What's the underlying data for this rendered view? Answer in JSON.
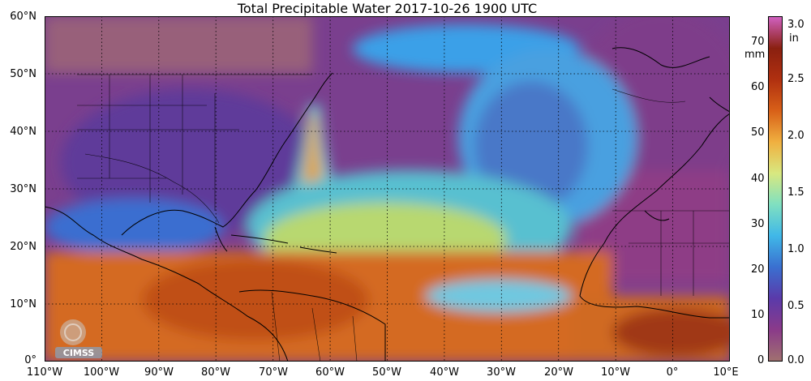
{
  "title": "Total Precipitable Water  2017-10-26 1900 UTC",
  "lat_labels": [
    "60°N",
    "50°N",
    "40°N",
    "30°N",
    "20°N",
    "10°N",
    "0°"
  ],
  "lon_labels": [
    "110°W",
    "100°W",
    "90°W",
    "80°W",
    "70°W",
    "60°W",
    "50°W",
    "40°W",
    "30°W",
    "20°W",
    "10°W",
    "0°",
    "10°E"
  ],
  "colorbar": {
    "mm_labels": [
      "70",
      "60",
      "50",
      "40",
      "30",
      "20",
      "10",
      "0"
    ],
    "mm_unit": "mm",
    "in_labels": [
      "3.0",
      "2.5",
      "2.0",
      "1.5",
      "1.0",
      "0.5",
      "0.0"
    ],
    "in_unit": "in",
    "colors": [
      "#a07070",
      "#8a3a8a",
      "#5a3aaa",
      "#3a70d0",
      "#40b8e8",
      "#80e0c0",
      "#d8e880",
      "#f0b040",
      "#d86018",
      "#b03010",
      "#8a2010",
      "#d060c0"
    ]
  },
  "logo_text": "CIMSS"
}
